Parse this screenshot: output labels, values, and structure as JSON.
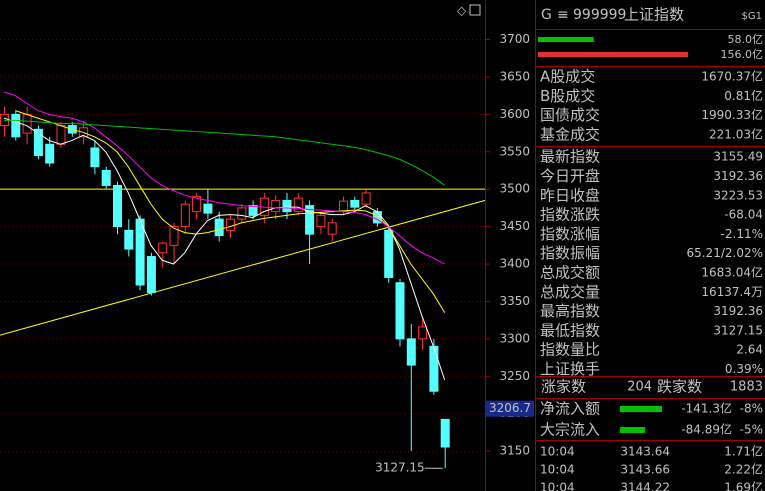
{
  "chart_data": {
    "type": "candlestick",
    "open": [
      3585,
      3600,
      3575,
      3580,
      3560,
      3560,
      3585,
      3570,
      3555,
      3525,
      3505,
      3445,
      3460,
      3410,
      3415,
      3425,
      3450,
      3470,
      3480,
      3460,
      3445,
      3460,
      3478,
      3465,
      3470,
      3485,
      3470,
      3478,
      3450,
      3440,
      3470,
      3485,
      3480,
      3470,
      3445,
      3375,
      3300,
      3300,
      3290,
      3192.36
    ],
    "high": [
      3610,
      3605,
      3610,
      3585,
      3570,
      3590,
      3590,
      3590,
      3565,
      3530,
      3510,
      3460,
      3465,
      3415,
      3430,
      3455,
      3485,
      3495,
      3500,
      3470,
      3465,
      3480,
      3485,
      3495,
      3492,
      3495,
      3495,
      3485,
      3470,
      3460,
      3490,
      3490,
      3500,
      3475,
      3450,
      3380,
      3320,
      3330,
      3300,
      3192.36
    ],
    "low": [
      3570,
      3565,
      3560,
      3540,
      3530,
      3555,
      3570,
      3560,
      3520,
      3500,
      3440,
      3410,
      3365,
      3358,
      3395,
      3400,
      3440,
      3460,
      3460,
      3430,
      3435,
      3455,
      3460,
      3455,
      3460,
      3460,
      3465,
      3400,
      3440,
      3430,
      3465,
      3472,
      3475,
      3450,
      3375,
      3290,
      3150,
      3285,
      3225,
      3127.15
    ],
    "close": [
      3600,
      3570,
      3600,
      3545,
      3535,
      3585,
      3575,
      3582,
      3530,
      3505,
      3450,
      3420,
      3372,
      3362,
      3428,
      3450,
      3480,
      3490,
      3468,
      3438,
      3460,
      3475,
      3465,
      3488,
      3485,
      3470,
      3488,
      3440,
      3465,
      3455,
      3484,
      3476,
      3495,
      3455,
      3382,
      3300,
      3265,
      3316,
      3230,
      3155.49
    ],
    "up_color": "#ff3232",
    "down_color": "#54ffff",
    "lines": [
      {
        "color": "#ffffff",
        "values": [
          3595,
          3590,
          3585,
          3575,
          3565,
          3560,
          3565,
          3572,
          3565,
          3550,
          3525,
          3495,
          3460,
          3425,
          3405,
          3400,
          3415,
          3440,
          3458,
          3465,
          3466,
          3465,
          3462,
          3470,
          3475,
          3476,
          3476,
          3470,
          3468,
          3466,
          3466,
          3470,
          3478,
          3470,
          3452,
          3420,
          3375,
          3330,
          3290,
          3245
        ]
      },
      {
        "color": "#ffff00",
        "values": [
          null,
          3605,
          3600,
          3595,
          3590,
          3585,
          3580,
          3576,
          3570,
          3562,
          3550,
          3530,
          3505,
          3480,
          3460,
          3448,
          3442,
          3440,
          3442,
          3446,
          3450,
          3455,
          3458,
          3461,
          3463,
          3465,
          3467,
          3468,
          3469,
          3470,
          3471,
          3472,
          3471,
          3465,
          3450,
          3425,
          3400,
          3380,
          3360,
          3335
        ]
      },
      {
        "color": "#ff00ff",
        "values": [
          3630,
          3625,
          3615,
          3605,
          3600,
          3597,
          3595,
          3590,
          3582,
          3570,
          3558,
          3545,
          3530,
          3515,
          3505,
          3498,
          3492,
          3488,
          3485,
          3482,
          3480,
          3478,
          3477,
          3476,
          3475,
          3475,
          3474,
          3473,
          3472,
          3471,
          3470,
          3469,
          3466,
          3460,
          3450,
          3438,
          3425,
          3415,
          3408,
          3400
        ]
      },
      {
        "color": "#00c000",
        "values": [
          3592,
          3592,
          3591,
          3590,
          3589,
          3588,
          3588,
          3587,
          3586,
          3585,
          3584,
          3583,
          3582,
          3581,
          3580,
          3579,
          3578,
          3577,
          3576,
          3575,
          3574,
          3573,
          3572,
          3571,
          3570,
          3568,
          3566,
          3564,
          3562,
          3560,
          3558,
          3556,
          3553,
          3549,
          3545,
          3540,
          3533,
          3525,
          3516,
          3505
        ]
      }
    ],
    "hline": 3500,
    "trendline": [
      3305,
      3485
    ],
    "ylim": [
      3096.7,
      3752.8
    ],
    "yticks": [
      3150,
      3200,
      3250,
      3300,
      3350,
      3400,
      3450,
      3500,
      3550,
      3600,
      3650,
      3700
    ],
    "cursor": {
      "value": 3206.7,
      "label": "3206.7"
    },
    "low_note": {
      "value": 3127.15,
      "label": "3127.15"
    },
    "grid": true
  },
  "panel": {
    "header": {
      "market": "G",
      "menu": "≡",
      "code": "999999",
      "name": "上证指数",
      "tag": "$G1"
    },
    "amount_bars": [
      {
        "value": 58.0,
        "label": "58.0亿",
        "color": "#00c000"
      },
      {
        "value": 156.0,
        "label": "156.0亿",
        "color": "#e03030"
      }
    ],
    "stats": [
      {
        "label": "A股成交",
        "value": "1670.37亿",
        "color": "#ffff00"
      },
      {
        "label": "B股成交",
        "value": "0.81亿",
        "color": "#ffff00"
      },
      {
        "label": "国债成交",
        "value": "1990.33亿",
        "color": "#ffff00"
      },
      {
        "label": "基金成交",
        "value": "221.03亿",
        "color": "#ffff00"
      },
      {
        "label": "最新指数",
        "value": "3155.49",
        "color": "#00e000"
      },
      {
        "label": "今日开盘",
        "value": "3192.36",
        "color": "#00e000"
      },
      {
        "label": "昨日收盘",
        "value": "3223.53",
        "color": "#ffffff"
      },
      {
        "label": "指数涨跌",
        "value": "-68.04",
        "color": "#00e000"
      },
      {
        "label": "指数涨幅",
        "value": "-2.11%",
        "color": "#00e000"
      },
      {
        "label": "指数振幅",
        "value": "65.21/2.02%",
        "color": "#ffffff"
      },
      {
        "label": "总成交额",
        "value": "1683.04亿",
        "color": "#ffff00"
      },
      {
        "label": "总成交量",
        "value": "16137.4万",
        "color": "#ffff00"
      },
      {
        "label": "最高指数",
        "value": "3192.36",
        "color": "#00e000"
      },
      {
        "label": "最低指数",
        "value": "3127.15",
        "color": "#00e000"
      },
      {
        "label": "指数量比",
        "value": "2.64",
        "color": "#ff4040"
      },
      {
        "label": "上证换手",
        "value": "0.39%",
        "color": "#ffffff"
      }
    ],
    "breadth": {
      "up_label": "涨家数",
      "up": "204",
      "down_label": "跌家数",
      "down": "1883"
    },
    "flows": [
      {
        "label": "净流入额",
        "value": -141.3,
        "text": "-141.3亿",
        "pct": "-8%"
      },
      {
        "label": "大宗流入",
        "value": -84.89,
        "text": "-84.89亿",
        "pct": "-5%"
      }
    ],
    "trades": [
      [
        "10:04",
        "3143.64",
        "1.71亿"
      ],
      [
        "10:04",
        "3143.66",
        "2.22亿"
      ],
      [
        "10:04",
        "3144.22",
        "1.69亿"
      ]
    ]
  }
}
